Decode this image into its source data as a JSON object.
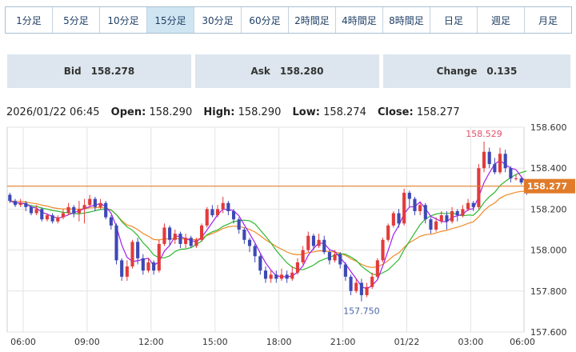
{
  "tabs": [
    {
      "label": "1分足",
      "active": false
    },
    {
      "label": "5分足",
      "active": false
    },
    {
      "label": "10分足",
      "active": false
    },
    {
      "label": "15分足",
      "active": true
    },
    {
      "label": "30分足",
      "active": false
    },
    {
      "label": "60分足",
      "active": false
    },
    {
      "label": "2時間足",
      "active": false
    },
    {
      "label": "4時間足",
      "active": false
    },
    {
      "label": "8時間足",
      "active": false
    },
    {
      "label": "日足",
      "active": false
    },
    {
      "label": "週足",
      "active": false
    },
    {
      "label": "月足",
      "active": false
    }
  ],
  "quote": {
    "bid_label": "Bid",
    "bid_value": "158.278",
    "ask_label": "Ask",
    "ask_value": "158.280",
    "change_label": "Change",
    "change_value": "0.135"
  },
  "ohlc": {
    "datetime": "2026/01/22 06:45",
    "open_label": "Open:",
    "open": "158.290",
    "high_label": "High:",
    "high": "158.290",
    "low_label": "Low:",
    "low": "158.274",
    "close_label": "Close:",
    "close": "158.277"
  },
  "chart_data": {
    "type": "candlestick",
    "ylim": [
      157.6,
      158.6
    ],
    "yticks": [
      "158.600",
      "158.400",
      "158.200",
      "158.000",
      "157.800",
      "157.600"
    ],
    "xticks": [
      "06:00",
      "09:00",
      "12:00",
      "15:00",
      "18:00",
      "21:00",
      "01/22",
      "03:00",
      "06:00"
    ],
    "bar_count": 97,
    "xtick_index": [
      3,
      15,
      27,
      39,
      51,
      63,
      75,
      87,
      99
    ],
    "current_price": "158.277",
    "high_annotation": "158.529",
    "low_annotation": "157.750",
    "colors": {
      "up": "#e23b3b",
      "down": "#3d49b5",
      "ma_fast": "#a020f0",
      "ma_mid": "#2eb82e",
      "ma_slow": "#f08a28",
      "price_line": "#e07b2a",
      "grid": "#e3e3e3",
      "high_label": "#e0506a",
      "low_label": "#4a66a8"
    },
    "candles": [
      [
        158.27,
        158.24,
        158.28,
        158.23
      ],
      [
        158.24,
        158.22,
        158.25,
        158.21
      ],
      [
        158.22,
        158.23,
        158.25,
        158.21
      ],
      [
        158.23,
        158.21,
        158.24,
        158.19
      ],
      [
        158.21,
        158.18,
        158.22,
        158.17
      ],
      [
        158.18,
        158.2,
        158.22,
        158.17
      ],
      [
        158.2,
        158.15,
        158.21,
        158.14
      ],
      [
        158.15,
        158.17,
        158.18,
        158.14
      ],
      [
        158.17,
        158.14,
        158.18,
        158.13
      ],
      [
        158.14,
        158.16,
        158.17,
        158.13
      ],
      [
        158.16,
        158.18,
        158.2,
        158.15
      ],
      [
        158.18,
        158.21,
        158.23,
        158.17
      ],
      [
        158.21,
        158.18,
        158.22,
        158.16
      ],
      [
        158.18,
        158.2,
        158.24,
        158.14
      ],
      [
        158.2,
        158.22,
        158.25,
        158.13
      ],
      [
        158.22,
        158.25,
        158.27,
        158.21
      ],
      [
        158.25,
        158.21,
        158.26,
        158.19
      ],
      [
        158.21,
        158.23,
        158.25,
        158.2
      ],
      [
        158.23,
        158.16,
        158.24,
        158.15
      ],
      [
        158.16,
        158.12,
        158.17,
        158.1
      ],
      [
        158.12,
        157.95,
        158.13,
        157.93
      ],
      [
        157.95,
        157.87,
        157.96,
        157.85
      ],
      [
        157.87,
        157.92,
        157.95,
        157.85
      ],
      [
        157.92,
        158.04,
        158.05,
        157.91
      ],
      [
        158.04,
        157.96,
        158.06,
        157.93
      ],
      [
        157.96,
        157.9,
        157.98,
        157.88
      ],
      [
        157.9,
        157.94,
        157.96,
        157.89
      ],
      [
        157.94,
        157.9,
        157.95,
        157.88
      ],
      [
        157.9,
        158.03,
        158.05,
        157.89
      ],
      [
        158.03,
        158.11,
        158.13,
        158.02
      ],
      [
        158.11,
        158.05,
        158.12,
        158.02
      ],
      [
        158.05,
        158.08,
        158.1,
        158.03
      ],
      [
        158.08,
        158.03,
        158.09,
        158.01
      ],
      [
        158.03,
        158.06,
        158.08,
        158.01
      ],
      [
        158.06,
        158.02,
        158.07,
        158.01
      ],
      [
        158.02,
        158.05,
        158.06,
        158.01
      ],
      [
        158.05,
        158.12,
        158.13,
        158.04
      ],
      [
        158.12,
        158.2,
        158.21,
        158.11
      ],
      [
        158.2,
        158.17,
        158.22,
        158.16
      ],
      [
        158.17,
        158.2,
        158.22,
        158.16
      ],
      [
        158.2,
        158.23,
        158.26,
        158.18
      ],
      [
        158.23,
        158.19,
        158.24,
        158.17
      ],
      [
        158.19,
        158.15,
        158.2,
        158.13
      ],
      [
        158.15,
        158.1,
        158.16,
        158.08
      ],
      [
        158.1,
        158.05,
        158.11,
        158.03
      ],
      [
        158.05,
        158.02,
        158.06,
        157.99
      ],
      [
        158.02,
        157.97,
        158.03,
        157.94
      ],
      [
        157.97,
        157.9,
        157.98,
        157.88
      ],
      [
        157.9,
        157.86,
        157.92,
        157.84
      ],
      [
        157.86,
        157.88,
        157.9,
        157.84
      ],
      [
        157.88,
        157.86,
        157.9,
        157.84
      ],
      [
        157.86,
        157.88,
        157.91,
        157.85
      ],
      [
        157.88,
        157.86,
        157.9,
        157.84
      ],
      [
        157.86,
        157.89,
        157.92,
        157.85
      ],
      [
        157.89,
        157.94,
        157.96,
        157.88
      ],
      [
        157.94,
        158.0,
        158.02,
        157.93
      ],
      [
        158.0,
        158.07,
        158.09,
        157.99
      ],
      [
        158.07,
        158.02,
        158.08,
        158.0
      ],
      [
        158.02,
        158.05,
        158.08,
        158.01
      ],
      [
        158.05,
        157.99,
        158.07,
        157.98
      ],
      [
        157.99,
        157.95,
        158.0,
        157.93
      ],
      [
        157.95,
        157.98,
        158.0,
        157.94
      ],
      [
        157.98,
        157.93,
        157.99,
        157.91
      ],
      [
        157.93,
        157.87,
        157.94,
        157.85
      ],
      [
        157.87,
        157.8,
        157.88,
        157.78
      ],
      [
        157.8,
        157.84,
        157.86,
        157.79
      ],
      [
        157.84,
        157.78,
        157.86,
        157.75
      ],
      [
        157.78,
        157.82,
        157.84,
        157.77
      ],
      [
        157.82,
        157.87,
        157.89,
        157.81
      ],
      [
        157.87,
        157.95,
        157.96,
        157.86
      ],
      [
        157.95,
        158.05,
        158.06,
        157.94
      ],
      [
        158.05,
        158.12,
        158.13,
        158.04
      ],
      [
        158.12,
        158.18,
        158.19,
        158.11
      ],
      [
        158.18,
        158.13,
        158.2,
        158.11
      ],
      [
        158.13,
        158.28,
        158.3,
        158.12
      ],
      [
        158.28,
        158.25,
        158.29,
        158.21
      ],
      [
        158.25,
        158.19,
        158.26,
        158.17
      ],
      [
        158.19,
        158.22,
        158.23,
        158.17
      ],
      [
        158.22,
        158.15,
        158.23,
        158.13
      ],
      [
        158.15,
        158.1,
        158.16,
        158.08
      ],
      [
        158.1,
        158.14,
        158.16,
        158.09
      ],
      [
        158.14,
        158.17,
        158.19,
        158.13
      ],
      [
        158.17,
        158.14,
        158.19,
        158.1
      ],
      [
        158.14,
        158.19,
        158.21,
        158.13
      ],
      [
        158.19,
        158.17,
        158.2,
        158.14
      ],
      [
        158.17,
        158.2,
        158.22,
        158.16
      ],
      [
        158.2,
        158.23,
        158.25,
        158.19
      ],
      [
        158.23,
        158.21,
        158.24,
        158.19
      ],
      [
        158.21,
        158.4,
        158.42,
        158.2
      ],
      [
        158.4,
        158.48,
        158.53,
        158.38
      ],
      [
        158.48,
        158.42,
        158.5,
        158.4
      ],
      [
        158.42,
        158.38,
        158.45,
        158.37
      ],
      [
        158.38,
        158.47,
        158.5,
        158.37
      ],
      [
        158.47,
        158.4,
        158.49,
        158.38
      ],
      [
        158.4,
        158.35,
        158.41,
        158.33
      ],
      [
        158.35,
        158.35,
        158.37,
        158.34
      ],
      [
        158.35,
        158.33,
        158.36,
        158.32
      ],
      [
        158.29,
        158.28,
        158.29,
        158.27
      ]
    ]
  }
}
